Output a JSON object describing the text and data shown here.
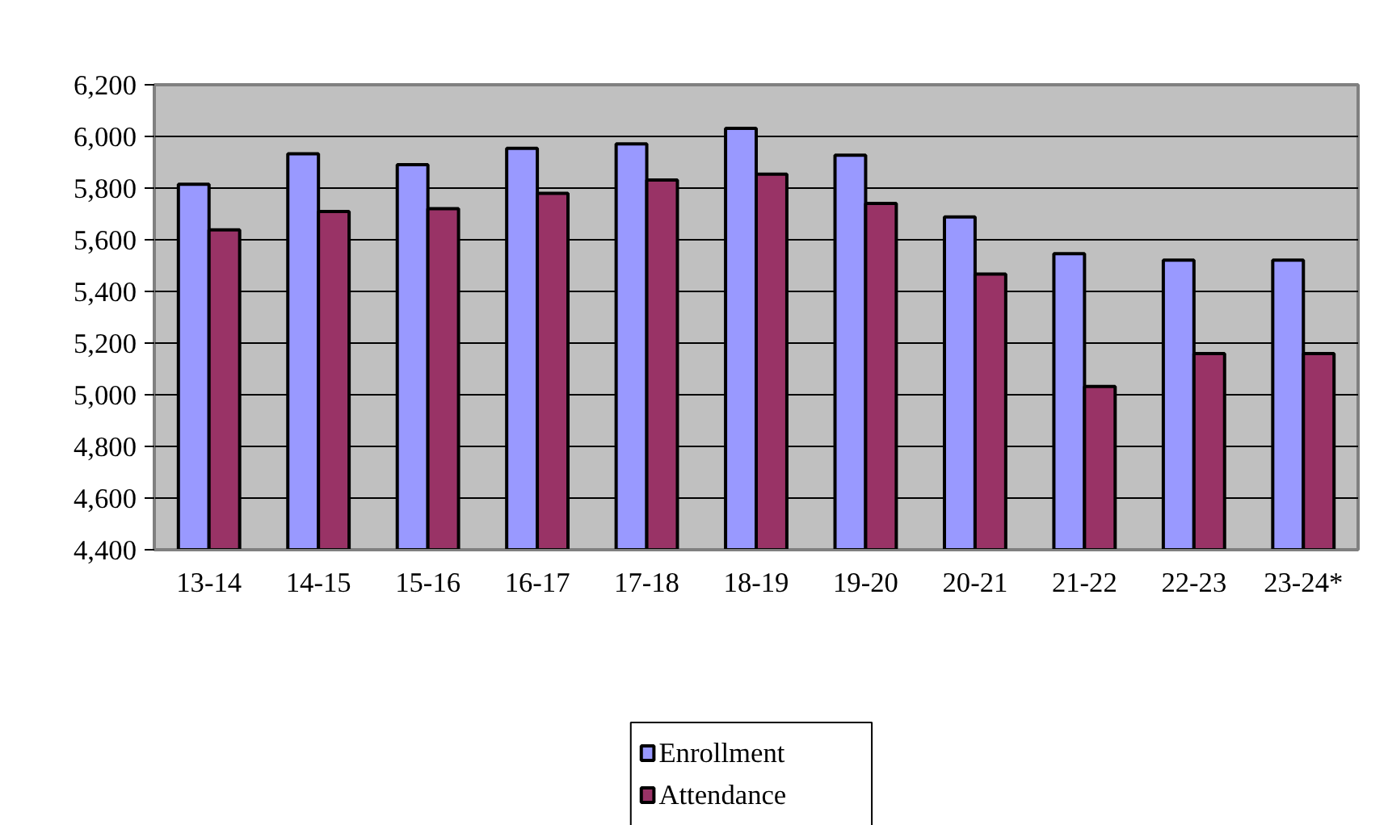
{
  "chart_data": {
    "type": "bar",
    "categories": [
      "13-14",
      "14-15",
      "15-16",
      "16-17",
      "17-18",
      "18-19",
      "19-20",
      "20-21",
      "21-22",
      "22-23",
      "23-24*"
    ],
    "series": [
      {
        "name": "Enrollment",
        "color": "#9999ff",
        "values": [
          5815,
          5933,
          5891,
          5954,
          5971,
          6031,
          5927,
          5688,
          5546,
          5521,
          5521
        ]
      },
      {
        "name": "Attendance",
        "color": "#993366",
        "values": [
          5638,
          5709,
          5720,
          5780,
          5831,
          5854,
          5741,
          5467,
          5032,
          5159,
          5159
        ]
      }
    ],
    "ylim": [
      4400,
      6200
    ],
    "yticks": [
      {
        "value": 4400,
        "label": "4,400"
      },
      {
        "value": 4600,
        "label": "4,600"
      },
      {
        "value": 4800,
        "label": "4,800"
      },
      {
        "value": 5000,
        "label": "5,000"
      },
      {
        "value": 5200,
        "label": "5,200"
      },
      {
        "value": 5400,
        "label": "5,400"
      },
      {
        "value": 5600,
        "label": "5,600"
      },
      {
        "value": 5800,
        "label": "5,800"
      },
      {
        "value": 6000,
        "label": "6,000"
      },
      {
        "value": 6200,
        "label": "6,200"
      }
    ],
    "grid": "y",
    "legend": "bottom"
  }
}
